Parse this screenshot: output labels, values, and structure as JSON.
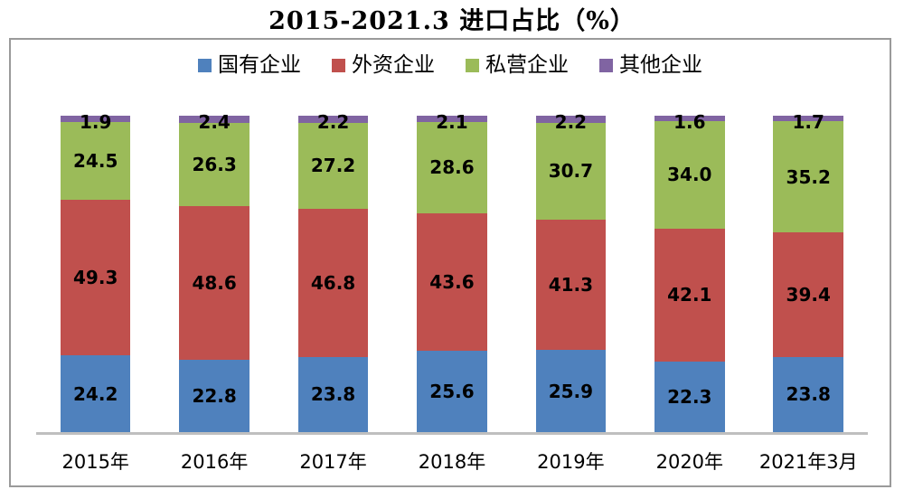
{
  "title": "2015-2021.3 进口占比（%）",
  "chart_data": {
    "type": "bar",
    "stacked": true,
    "percent_stacked": true,
    "title": "2015-2021.3 进口占比（%）",
    "categories": [
      "2015年",
      "2016年",
      "2017年",
      "2018年",
      "2019年",
      "2020年",
      "2021年3月"
    ],
    "series": [
      {
        "name": "国有企业",
        "color": "#4F81BD",
        "values": [
          24.2,
          22.8,
          23.8,
          25.6,
          25.9,
          22.3,
          23.8
        ]
      },
      {
        "name": "外资企业",
        "color": "#C0504D",
        "values": [
          49.3,
          48.6,
          46.8,
          43.6,
          41.3,
          42.1,
          39.4
        ]
      },
      {
        "name": "私营企业",
        "color": "#9BBB59",
        "values": [
          24.5,
          26.3,
          27.2,
          28.6,
          30.7,
          34.0,
          35.2
        ]
      },
      {
        "name": "其他企业",
        "color": "#8064A2",
        "values": [
          1.9,
          2.4,
          2.2,
          2.1,
          2.2,
          1.6,
          1.7
        ]
      }
    ],
    "xlabel": "",
    "ylabel": "",
    "ylim": [
      0,
      100
    ],
    "grid": false,
    "legend_position": "top",
    "value_labels": true,
    "value_label_decimals": 1
  },
  "colors": {
    "axis_line": "#BFBFBF",
    "box_border": "#9A9A9A",
    "label_text": "#000000"
  }
}
